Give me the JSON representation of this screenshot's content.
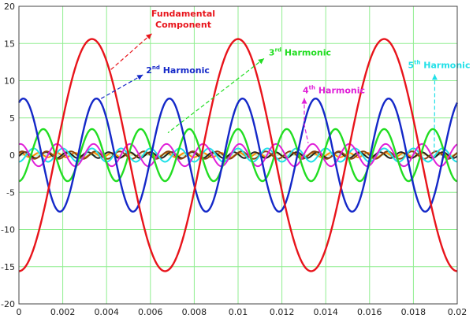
{
  "chart_data": {
    "type": "line",
    "xlim": [
      0,
      0.02
    ],
    "ylim": [
      -20,
      20
    ],
    "x_ticks": [
      "0",
      "0.002",
      "0.004",
      "0.006",
      "0.008",
      "0.01",
      "0.012",
      "0.014",
      "0.016",
      "0.018",
      "0.02"
    ],
    "y_ticks": [
      "20",
      "15",
      "10",
      "5",
      "0",
      "-5",
      "-10",
      "-15",
      "-20"
    ],
    "grid": true,
    "background": "#ffffff",
    "grid_color": "#90ee90",
    "fundamental_frequency_hz": 150,
    "series": [
      {
        "harmonic": 1,
        "amplitude": 15.6,
        "phase_deg": -90,
        "color": "#e8141b"
      },
      {
        "harmonic": 2,
        "amplitude": 7.6,
        "phase_deg": 68,
        "color": "#1428c8"
      },
      {
        "harmonic": 3,
        "amplitude": 3.5,
        "phase_deg": -90,
        "color": "#22dd22"
      },
      {
        "harmonic": 4,
        "amplitude": 1.5,
        "phase_deg": 75,
        "color": "#e020d8"
      },
      {
        "harmonic": 5,
        "amplitude": 0.9,
        "phase_deg": -90,
        "color": "#20e0e8"
      },
      {
        "harmonic": 6,
        "amplitude": 0.5,
        "phase_deg": 40,
        "color": "#8b4513"
      },
      {
        "harmonic": 7,
        "amplitude": 0.4,
        "phase_deg": -20,
        "color": "#222222"
      },
      {
        "harmonic": 8,
        "amplitude": 0.3,
        "phase_deg": 60,
        "color": "#ff8c00"
      }
    ],
    "annotations": [
      {
        "id": "fundamental",
        "line1": "Fundamental",
        "line2": "Component",
        "color": "#e8141b",
        "x": 0.0075,
        "y": 17.8,
        "target": [
          0.0042,
          11.5
        ]
      },
      {
        "id": "h2",
        "pre": "2",
        "sup": "nd",
        "post": " Harmonic",
        "color": "#1428c8",
        "x": 0.0058,
        "y": 11.0,
        "target": [
          0.00375,
          7.6
        ]
      },
      {
        "id": "h3",
        "pre": "3",
        "sup": "rd",
        "post": " Harmonic",
        "color": "#22dd22",
        "x": 0.0114,
        "y": 13.4,
        "target": [
          0.0068,
          3.0
        ]
      },
      {
        "id": "h4",
        "pre": "4",
        "sup": "th",
        "post": " Harmonic",
        "color": "#e020d8",
        "x": 0.01295,
        "y": 8.3,
        "target": [
          0.0132,
          1.6
        ]
      },
      {
        "id": "h5",
        "pre": "5",
        "sup": "th",
        "post": " Harmonic",
        "color": "#20e0e8",
        "x": 0.01775,
        "y": 11.7,
        "target": [
          0.01895,
          0.4
        ]
      }
    ]
  }
}
